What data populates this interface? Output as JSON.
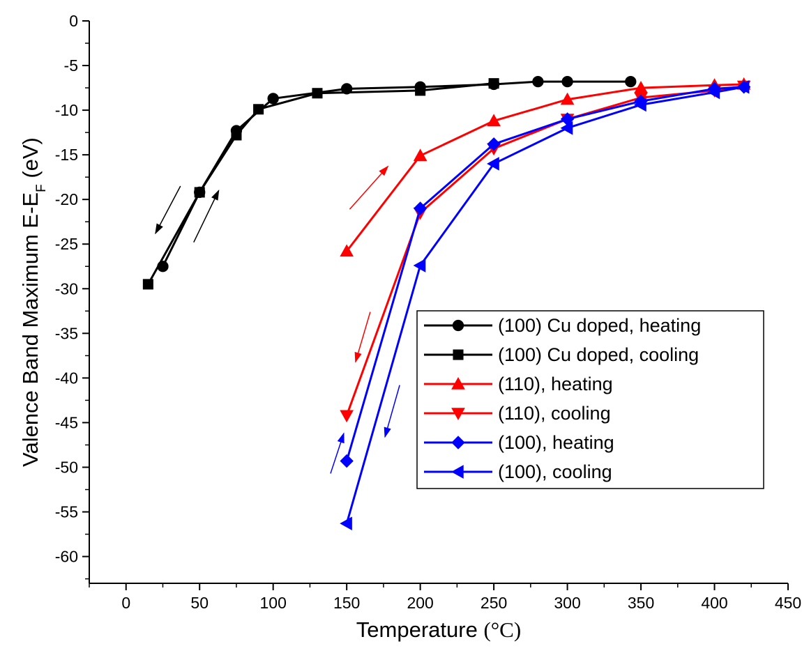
{
  "chart_data": {
    "type": "line",
    "xlabel": "Temperature",
    "xlabel_unit": "(°C)",
    "ylabel_prefix": "Valence Band Maximum  E-E",
    "ylabel_sub": "F",
    "ylabel_suffix": " (eV)",
    "xlim": [
      -25,
      450
    ],
    "ylim": [
      -63,
      0
    ],
    "xticks": [
      0,
      50,
      100,
      150,
      200,
      250,
      300,
      350,
      400,
      450
    ],
    "yticks": [
      0,
      -5,
      -10,
      -15,
      -20,
      -25,
      -30,
      -35,
      -40,
      -45,
      -50,
      -55,
      -60
    ],
    "grid": false,
    "legend_position": "lower-right",
    "series": [
      {
        "name": "(100) Cu doped, heating",
        "color": "#000000",
        "marker": "circle",
        "x": [
          25,
          50,
          75,
          100,
          150,
          200,
          250,
          280,
          300,
          343
        ],
        "y": [
          -27.5,
          -19.2,
          -12.3,
          -8.7,
          -7.6,
          -7.4,
          -7.1,
          -6.8,
          -6.8,
          -6.8
        ]
      },
      {
        "name": "(100) Cu doped, cooling",
        "color": "#000000",
        "marker": "square",
        "x": [
          15,
          50,
          75,
          90,
          130,
          200,
          250
        ],
        "y": [
          -29.5,
          -19.2,
          -12.8,
          -9.9,
          -8.1,
          -7.8,
          -7.0
        ]
      },
      {
        "name": "(110), heating",
        "color": "#ff0000",
        "marker": "triangle-up",
        "x": [
          150,
          200,
          250,
          300,
          350,
          400,
          420
        ],
        "y": [
          -25.8,
          -15.1,
          -11.2,
          -8.8,
          -7.5,
          -7.2,
          -7.1
        ]
      },
      {
        "name": "(110), cooling",
        "color": "#ff0000",
        "marker": "triangle-down",
        "x": [
          150,
          200,
          250,
          300,
          350,
          400,
          420
        ],
        "y": [
          -44.2,
          -21.5,
          -14.3,
          -11.0,
          -8.6,
          -7.8,
          -7.3
        ]
      },
      {
        "name": "(100), heating",
        "color": "#0000ff",
        "marker": "diamond",
        "x": [
          150,
          200,
          250,
          300,
          350,
          400,
          420
        ],
        "y": [
          -49.3,
          -21.0,
          -13.8,
          -11.0,
          -9.0,
          -7.6,
          -7.4
        ]
      },
      {
        "name": "(100), cooling",
        "color": "#0000ff",
        "marker": "triangle-left",
        "x": [
          150,
          200,
          250,
          300,
          350,
          400,
          420
        ],
        "y": [
          -56.3,
          -27.4,
          -16.0,
          -12.0,
          -9.4,
          -8.0,
          -7.4
        ]
      }
    ],
    "annotations": [
      {
        "type": "arrow",
        "color": "#000000",
        "from": [
          37,
          -18.5
        ],
        "to": [
          20,
          -23.8
        ]
      },
      {
        "type": "arrow",
        "color": "#000000",
        "from": [
          46,
          -24.8
        ],
        "to": [
          63,
          -19.0
        ]
      },
      {
        "type": "arrow",
        "color": "#ff0000",
        "from": [
          152,
          -21.1
        ],
        "to": [
          178,
          -16.3
        ]
      },
      {
        "type": "arrow",
        "color": "#ff0000",
        "from": [
          166,
          -32.6
        ],
        "to": [
          156,
          -38.2
        ]
      },
      {
        "type": "arrow",
        "color": "#0000ff",
        "from": [
          139,
          -50.7
        ],
        "to": [
          148,
          -46.2
        ]
      },
      {
        "type": "arrow",
        "color": "#0000ff",
        "from": [
          186,
          -40.8
        ],
        "to": [
          176,
          -46.6
        ]
      }
    ]
  }
}
